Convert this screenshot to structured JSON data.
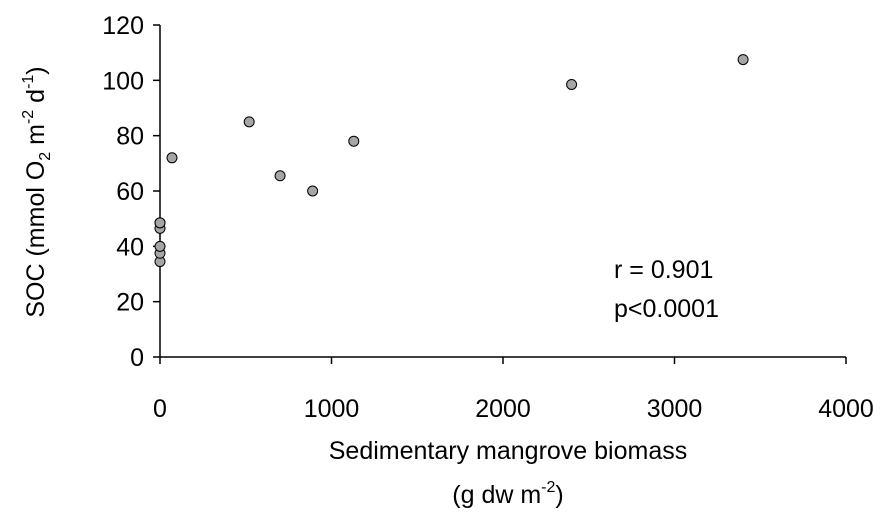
{
  "chart_data": {
    "type": "scatter",
    "title": "",
    "xlabel_line1": "Sedimentary mangrove biomass",
    "xlabel_line2": {
      "pre": "(g dw m",
      "sup": "-2",
      "post": ")"
    },
    "ylabel": {
      "p1": "SOC (mmol O",
      "sub": "2",
      "p2": " m",
      "sup1": "-2",
      "p3": " d",
      "sup2": "-1",
      "p4": ")"
    },
    "xlim": [
      0,
      4000
    ],
    "ylim": [
      0,
      120
    ],
    "xticks": [
      0,
      1000,
      2000,
      3000,
      4000
    ],
    "yticks": [
      0,
      20,
      40,
      60,
      80,
      100,
      120
    ],
    "xtick_labels": [
      "0",
      "1000",
      "2000",
      "3000",
      "4000"
    ],
    "ytick_labels": [
      "0",
      "20",
      "40",
      "60",
      "80",
      "100",
      "120"
    ],
    "grid": false,
    "point_color": "#a6a6a6",
    "series": [
      {
        "x": [
          0,
          0,
          0,
          0,
          0,
          0,
          70,
          520,
          700,
          890,
          1130,
          2400,
          3400
        ],
        "y": [
          34.5,
          37.5,
          40,
          46.5,
          48.5,
          48.5,
          72,
          85,
          65.5,
          60,
          78,
          98.5,
          107.5
        ]
      }
    ],
    "annotations": [
      "r = 0.901",
      "p<0.0001"
    ]
  }
}
